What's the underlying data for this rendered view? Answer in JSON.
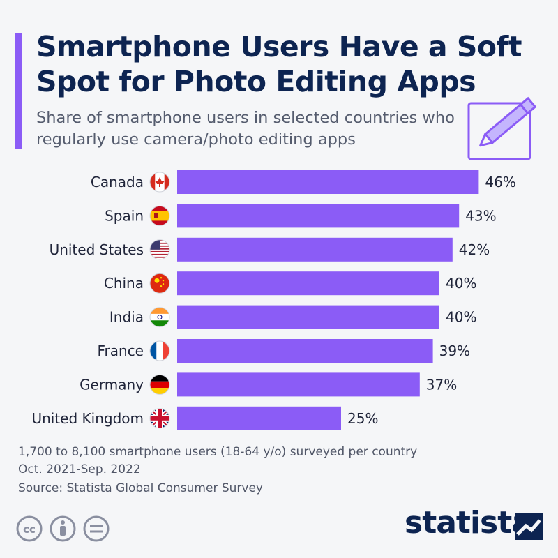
{
  "header": {
    "title": "Smartphone Users Have a Soft Spot for Photo Editing Apps",
    "subtitle": "Share of smartphone users in selected countries who regularly use camera/photo editing apps"
  },
  "colors": {
    "accent": "#8b5cf6",
    "bar": "#8b5cf6",
    "title": "#0d2451"
  },
  "chart_data": {
    "type": "bar",
    "orientation": "horizontal",
    "title": "Smartphone Users Have a Soft Spot for Photo Editing Apps",
    "subtitle": "Share of smartphone users in selected countries who regularly use camera/photo editing apps",
    "categories": [
      "Canada",
      "Spain",
      "United States",
      "China",
      "India",
      "France",
      "Germany",
      "United Kingdom"
    ],
    "values": [
      46,
      43,
      42,
      40,
      40,
      39,
      37,
      25
    ],
    "value_labels": [
      "46%",
      "43%",
      "42%",
      "40%",
      "40%",
      "39%",
      "37%",
      "25%"
    ],
    "flags": [
      "canada-flag-icon",
      "spain-flag-icon",
      "usa-flag-icon",
      "china-flag-icon",
      "india-flag-icon",
      "france-flag-icon",
      "germany-flag-icon",
      "uk-flag-icon"
    ],
    "xlim": [
      0,
      50
    ],
    "grid": false,
    "legend": "none"
  },
  "footer": {
    "note1": "1,700 to 8,100 smartphone users (18-64 y/o) surveyed per country",
    "note2": "Oct. 2021-Sep. 2022",
    "source": "Source: Statista Global Consumer Survey",
    "brand": "statista"
  }
}
